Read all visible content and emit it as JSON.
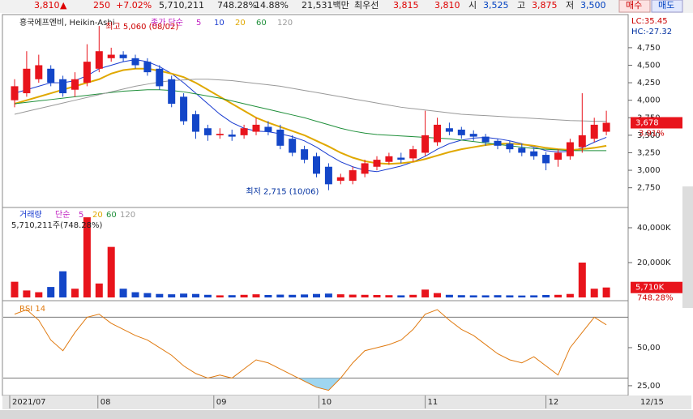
{
  "quote_bar": {
    "price": "3,810",
    "arrow": "▲",
    "change": "250",
    "change_pct": "+7.02%",
    "volume": "5,710,211",
    "volume_ratio": "748.28%",
    "turnover": "14.88%",
    "amount": "21,531백만",
    "best": "최우선",
    "ask": "3,815",
    "bid": "3,810",
    "open_label": "시",
    "open": "3,525",
    "high_label": "고",
    "high": "3,875",
    "low_label": "저",
    "low": "3,500",
    "buy": "매수",
    "sell": "매도"
  },
  "chart_data": [
    {
      "type": "candlestick",
      "title": "흥국에프엔비, Heikin-Ashi",
      "ma_label": "종가 단순",
      "annotations": {
        "high": "최고 5,060 (08/02)",
        "low": "최저 2,715 (10/06)",
        "lc": "LC:35.45",
        "hc": "HC:-27.32",
        "last": "3,678",
        "last_pct": "3.91%"
      },
      "ylim": [
        2480,
        5200
      ],
      "yticks": [
        {
          "value": 2750,
          "label": "2,750"
        },
        {
          "value": 3000,
          "label": "3,000"
        },
        {
          "value": 3250,
          "label": "3,250"
        },
        {
          "value": 3500,
          "label": "3,500"
        },
        {
          "value": 3750,
          "label": "3,750"
        },
        {
          "value": 4000,
          "label": "4,000"
        },
        {
          "value": 4250,
          "label": "4,250"
        },
        {
          "value": 4500,
          "label": "4,500"
        },
        {
          "value": 4750,
          "label": "4,750"
        }
      ],
      "up_color": "#e8141c",
      "down_color": "#1346c8",
      "open": [
        4000,
        4100,
        4300,
        4450,
        4300,
        4150,
        4250,
        4450,
        4600,
        4650,
        4600,
        4550,
        4450,
        4300,
        4050,
        3800,
        3600,
        3500,
        3510,
        3500,
        3550,
        3620,
        3580,
        3450,
        3300,
        3200,
        3050,
        2850,
        2850,
        2950,
        3050,
        3120,
        3180,
        3170,
        3250,
        3400,
        3600,
        3580,
        3520,
        3480,
        3420,
        3380,
        3320,
        3270,
        3220,
        3150,
        3200,
        3330,
        3450,
        3550
      ],
      "high": [
        4300,
        4700,
        4650,
        4500,
        4350,
        4400,
        4800,
        5060,
        4750,
        4700,
        4650,
        4600,
        4500,
        4350,
        4100,
        3850,
        3650,
        3600,
        3580,
        3650,
        3750,
        3700,
        3650,
        3500,
        3350,
        3250,
        3100,
        2950,
        3050,
        3150,
        3200,
        3250,
        3250,
        3350,
        3850,
        3750,
        3680,
        3620,
        3570,
        3520,
        3450,
        3420,
        3380,
        3320,
        3260,
        3300,
        3450,
        4100,
        3750,
        3850
      ],
      "low": [
        3900,
        4050,
        4250,
        4200,
        4050,
        4050,
        4200,
        4400,
        4550,
        4550,
        4450,
        4350,
        4150,
        3900,
        3650,
        3450,
        3420,
        3450,
        3420,
        3450,
        3500,
        3500,
        3300,
        3200,
        3100,
        2900,
        2715,
        2800,
        2800,
        2900,
        3000,
        3080,
        3100,
        3120,
        3200,
        3350,
        3500,
        3450,
        3420,
        3350,
        3300,
        3250,
        3200,
        3150,
        3000,
        3050,
        3150,
        3250,
        3400,
        3500
      ],
      "close": [
        4200,
        4450,
        4500,
        4250,
        4100,
        4300,
        4550,
        4700,
        4650,
        4600,
        4500,
        4400,
        4200,
        3950,
        3700,
        3550,
        3500,
        3520,
        3480,
        3600,
        3650,
        3550,
        3350,
        3250,
        3150,
        2950,
        2800,
        2900,
        3000,
        3100,
        3150,
        3200,
        3150,
        3300,
        3500,
        3650,
        3550,
        3500,
        3480,
        3400,
        3350,
        3300,
        3250,
        3200,
        3100,
        3250,
        3400,
        3500,
        3650,
        3678
      ],
      "series": [
        {
          "name": "5",
          "color": "#c020c0",
          "values": null
        },
        {
          "name": "10",
          "color": "#1a3cd0",
          "values": [
            4100,
            4150,
            4200,
            4250,
            4250,
            4280,
            4350,
            4450,
            4500,
            4550,
            4580,
            4550,
            4480,
            4380,
            4250,
            4100,
            3950,
            3800,
            3680,
            3600,
            3560,
            3550,
            3520,
            3480,
            3420,
            3330,
            3220,
            3120,
            3050,
            3000,
            2980,
            3020,
            3060,
            3120,
            3200,
            3300,
            3380,
            3430,
            3460,
            3470,
            3450,
            3420,
            3380,
            3330,
            3280,
            3260,
            3270,
            3320,
            3400,
            3470
          ]
        },
        {
          "name": "20",
          "color": "#e0a800",
          "values": [
            3950,
            4000,
            4050,
            4100,
            4150,
            4200,
            4250,
            4300,
            4380,
            4430,
            4450,
            4450,
            4420,
            4380,
            4330,
            4250,
            4150,
            4050,
            3950,
            3850,
            3750,
            3680,
            3620,
            3560,
            3500,
            3420,
            3340,
            3250,
            3180,
            3130,
            3100,
            3090,
            3100,
            3120,
            3160,
            3210,
            3260,
            3300,
            3330,
            3360,
            3380,
            3380,
            3370,
            3350,
            3320,
            3300,
            3290,
            3300,
            3320,
            3350
          ]
        },
        {
          "name": "60",
          "color": "#1f8f3a",
          "values": [
            3950,
            3970,
            3990,
            4010,
            4030,
            4050,
            4070,
            4090,
            4110,
            4130,
            4140,
            4150,
            4150,
            4140,
            4120,
            4090,
            4060,
            4030,
            3990,
            3950,
            3910,
            3870,
            3830,
            3790,
            3750,
            3700,
            3650,
            3600,
            3560,
            3530,
            3510,
            3500,
            3490,
            3480,
            3470,
            3460,
            3450,
            3430,
            3410,
            3390,
            3370,
            3350,
            3330,
            3310,
            3300,
            3290,
            3280,
            3280,
            3280,
            3280
          ]
        },
        {
          "name": "120",
          "color": "#999999",
          "values": [
            3800,
            3840,
            3880,
            3920,
            3960,
            4000,
            4040,
            4080,
            4120,
            4160,
            4200,
            4230,
            4260,
            4280,
            4290,
            4300,
            4300,
            4290,
            4280,
            4260,
            4240,
            4220,
            4200,
            4170,
            4140,
            4110,
            4080,
            4050,
            4020,
            3990,
            3960,
            3930,
            3900,
            3880,
            3860,
            3840,
            3820,
            3800,
            3790,
            3780,
            3770,
            3760,
            3750,
            3740,
            3730,
            3720,
            3710,
            3705,
            3700,
            3700
          ]
        }
      ]
    },
    {
      "type": "bar",
      "title": "거래량",
      "ma_label": "단순",
      "ma_periods": [
        "5",
        "20",
        "60",
        "120"
      ],
      "subtitle": "5,710,211주(748.28%)",
      "last_label": "5,710K",
      "last_pct": "748.28%",
      "ylim": [
        0,
        50700
      ],
      "yticks": [
        {
          "value": 20000,
          "label": "20,000K"
        },
        {
          "value": 40000,
          "label": "40,000K"
        }
      ],
      "values": [
        9000,
        4000,
        3000,
        6000,
        15000,
        5000,
        46000,
        8000,
        29000,
        5000,
        3000,
        2500,
        2000,
        1800,
        2200,
        2000,
        1500,
        1200,
        1300,
        1500,
        1800,
        1400,
        1600,
        1500,
        1700,
        2000,
        2200,
        1800,
        1600,
        1500,
        1400,
        1300,
        1200,
        1500,
        4500,
        2500,
        1500,
        1300,
        1200,
        1200,
        1300,
        1200,
        1100,
        1200,
        1400,
        1500,
        2000,
        20000,
        5000,
        5710
      ]
    },
    {
      "type": "line",
      "title": "RSI 14",
      "color": "#e07a10",
      "ylim": [
        19.1,
        79.8
      ],
      "yticks": [
        {
          "value": 25,
          "label": "25,00"
        },
        {
          "value": 50,
          "label": "50,00"
        }
      ],
      "guide_lines": [
        30,
        70
      ],
      "values": [
        72,
        75,
        68,
        55,
        48,
        60,
        70,
        72,
        66,
        62,
        58,
        55,
        50,
        45,
        38,
        33,
        30,
        32,
        30,
        36,
        42,
        40,
        36,
        32,
        28,
        24,
        22,
        30,
        40,
        48,
        50,
        52,
        55,
        62,
        72,
        75,
        68,
        62,
        58,
        52,
        46,
        42,
        40,
        44,
        38,
        32,
        50,
        60,
        70,
        65
      ],
      "xticks": [
        {
          "value": 0,
          "label": "2021/07"
        },
        {
          "value": 7.3,
          "label": "08"
        },
        {
          "value": 16.9,
          "label": "09"
        },
        {
          "value": 25.6,
          "label": "10"
        },
        {
          "value": 34.4,
          "label": "11"
        },
        {
          "value": 44.4,
          "label": "12"
        }
      ],
      "end_label": "12/15"
    }
  ]
}
